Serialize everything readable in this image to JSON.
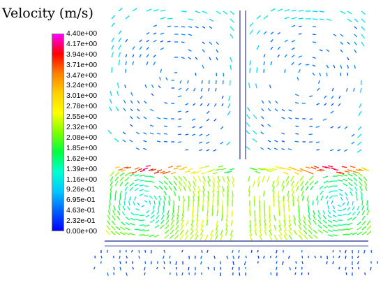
{
  "figure": {
    "title": "Velocity (m/s)",
    "legend": {
      "labels": [
        "4.40e+00",
        "4.17e+00",
        "3.94e+00",
        "3.71e+00",
        "3.47e+00",
        "3.24e+00",
        "3.01e+00",
        "2.78e+00",
        "2.55e+00",
        "2.32e+00",
        "2.08e+00",
        "1.85e+00",
        "1.62e+00",
        "1.39e+00",
        "1.16e+00",
        "9.26e-01",
        "6.95e-01",
        "4.63e-01",
        "2.32e-01",
        "0.00e+00"
      ],
      "min": 0.0,
      "max": 4.4,
      "colors": [
        "#ff00ff",
        "#ff0000",
        "#ff8000",
        "#ffd000",
        "#ffff00",
        "#80ff00",
        "#00ff40",
        "#00ffd0",
        "#00c8ff",
        "#0060ff",
        "#0000ff"
      ]
    }
  }
}
